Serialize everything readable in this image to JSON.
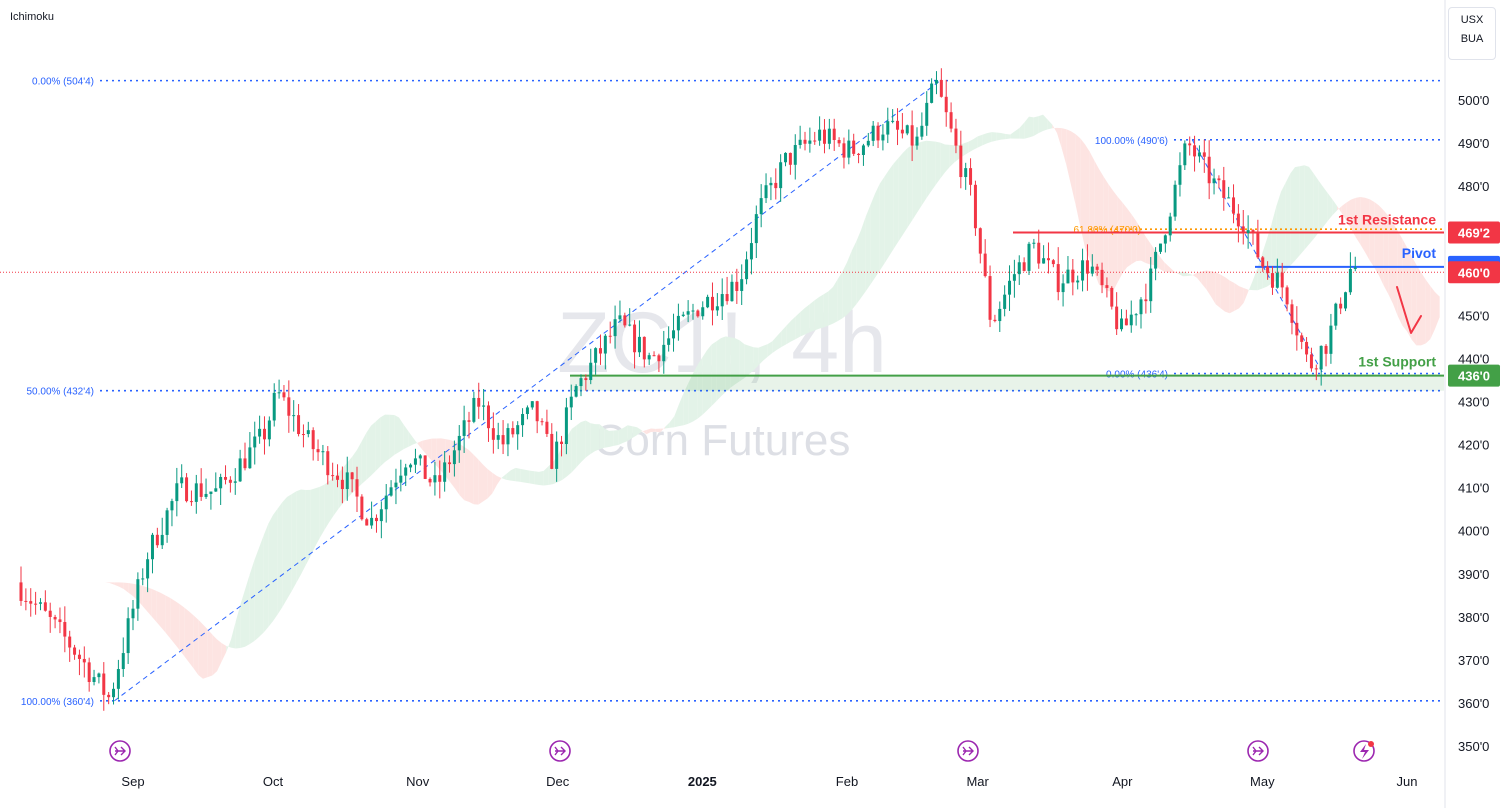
{
  "indicator_name": "Ichimoku",
  "watermark": {
    "symbol": "ZC1!, 4h",
    "name": "Corn Futures"
  },
  "units": [
    "USX",
    "BUA"
  ],
  "colors": {
    "bull": "#089981",
    "bear": "#f23645",
    "fib": "#2962ff",
    "cloud_bull": "#e3f3e8",
    "cloud_bear": "#fde4e2",
    "resistance": "#f23645",
    "pivot": "#2962ff",
    "support": "#43a047",
    "fib618": "#ff9800"
  },
  "chart_data": {
    "type": "candlestick",
    "instrument": "ZC1!",
    "timeframe": "4h",
    "y_range": [
      345,
      508
    ],
    "y_ticks": [
      "500'0",
      "490'0",
      "480'0",
      "470'0",
      "460'0",
      "450'0",
      "440'0",
      "430'0",
      "420'0",
      "410'0",
      "400'0",
      "390'0",
      "380'0",
      "370'0",
      "360'0",
      "350'0"
    ],
    "y_tick_values": [
      500,
      490,
      480,
      470,
      460,
      450,
      440,
      430,
      420,
      410,
      400,
      390,
      380,
      370,
      360,
      350
    ],
    "x_labels": [
      {
        "text": "Sep",
        "date": "2024-09-01",
        "bold": false
      },
      {
        "text": "Oct",
        "date": "2024-10-01",
        "bold": false
      },
      {
        "text": "Nov",
        "date": "2024-11-01",
        "bold": false
      },
      {
        "text": "Dec",
        "date": "2024-12-01",
        "bold": false
      },
      {
        "text": "2025",
        "date": "2025-01-01",
        "bold": true
      },
      {
        "text": "Feb",
        "date": "2025-02-01",
        "bold": false
      },
      {
        "text": "Mar",
        "date": "2025-03-01",
        "bold": false
      },
      {
        "text": "Apr",
        "date": "2025-04-01",
        "bold": false
      },
      {
        "text": "May",
        "date": "2025-05-01",
        "bold": false
      },
      {
        "text": "Jun",
        "date": "2025-06-01",
        "bold": false
      }
    ],
    "price_path": [
      {
        "date": "2024-08-08",
        "price": 388
      },
      {
        "date": "2024-08-20",
        "price": 373
      },
      {
        "date": "2024-08-28",
        "price": 361
      },
      {
        "date": "2024-09-05",
        "price": 394
      },
      {
        "date": "2024-09-12",
        "price": 410
      },
      {
        "date": "2024-09-20",
        "price": 409
      },
      {
        "date": "2024-09-30",
        "price": 422
      },
      {
        "date": "2024-10-03",
        "price": 432
      },
      {
        "date": "2024-10-10",
        "price": 420
      },
      {
        "date": "2024-10-18",
        "price": 411
      },
      {
        "date": "2024-10-23",
        "price": 402
      },
      {
        "date": "2024-10-31",
        "price": 418
      },
      {
        "date": "2024-11-06",
        "price": 410
      },
      {
        "date": "2024-11-15",
        "price": 430
      },
      {
        "date": "2024-11-20",
        "price": 420
      },
      {
        "date": "2024-11-27",
        "price": 428
      },
      {
        "date": "2024-12-01",
        "price": 416
      },
      {
        "date": "2024-12-06",
        "price": 433
      },
      {
        "date": "2024-12-15",
        "price": 448
      },
      {
        "date": "2024-12-22",
        "price": 440
      },
      {
        "date": "2025-01-01",
        "price": 452
      },
      {
        "date": "2025-01-10",
        "price": 458
      },
      {
        "date": "2025-01-14",
        "price": 474
      },
      {
        "date": "2025-01-20",
        "price": 486
      },
      {
        "date": "2025-01-27",
        "price": 492
      },
      {
        "date": "2025-02-03",
        "price": 488
      },
      {
        "date": "2025-02-10",
        "price": 494
      },
      {
        "date": "2025-02-17",
        "price": 490
      },
      {
        "date": "2025-02-21",
        "price": 504
      },
      {
        "date": "2025-02-25",
        "price": 490
      },
      {
        "date": "2025-03-01",
        "price": 476
      },
      {
        "date": "2025-03-05",
        "price": 448
      },
      {
        "date": "2025-03-10",
        "price": 460
      },
      {
        "date": "2025-03-14",
        "price": 466
      },
      {
        "date": "2025-03-19",
        "price": 458
      },
      {
        "date": "2025-03-26",
        "price": 462
      },
      {
        "date": "2025-04-02",
        "price": 446
      },
      {
        "date": "2025-04-08",
        "price": 458
      },
      {
        "date": "2025-04-11",
        "price": 470
      },
      {
        "date": "2025-04-16",
        "price": 490
      },
      {
        "date": "2025-04-22",
        "price": 480
      },
      {
        "date": "2025-04-28",
        "price": 472
      },
      {
        "date": "2025-05-02",
        "price": 462
      },
      {
        "date": "2025-05-07",
        "price": 456
      },
      {
        "date": "2025-05-12",
        "price": 438
      },
      {
        "date": "2025-05-16",
        "price": 444
      },
      {
        "date": "2025-05-21",
        "price": 461
      }
    ],
    "fib_levels": [
      {
        "label": "0.00% (504'4)",
        "price": 504.5
      },
      {
        "label": "50.00% (432'4)",
        "price": 432.5
      },
      {
        "label": "100.00% (360'4)",
        "price": 360.5
      },
      {
        "label": "100.00% (490'6)",
        "price": 490.75
      },
      {
        "label": "61.80% (470'0)",
        "price": 470.0
      },
      {
        "label": "0.00% (436'4)",
        "price": 436.5
      }
    ],
    "levels": [
      {
        "name": "1st Resistance",
        "value": "469'2",
        "price": 469.25
      },
      {
        "name": "Pivot",
        "value": "461'2",
        "price": 461.25
      },
      {
        "name": "1st Support",
        "value": "436'0",
        "price": 436.0
      }
    ],
    "last_price": {
      "value": "460'0",
      "price": 460.0
    }
  }
}
